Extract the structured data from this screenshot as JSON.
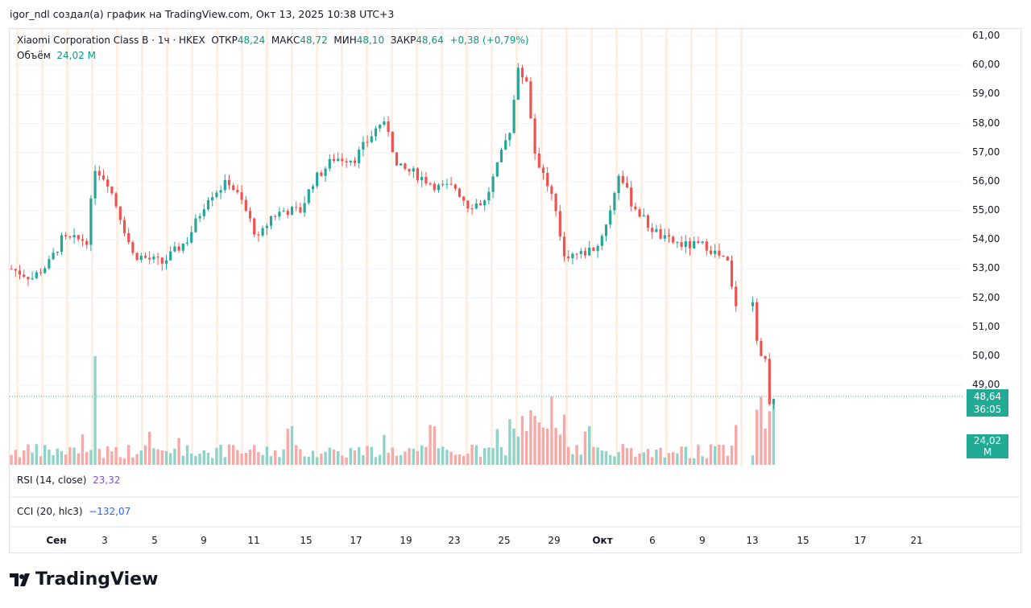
{
  "caption": "igor_ndl создал(а) график на TradingView.com, Окт 13, 2025 10:38 UTC+3",
  "legend": {
    "symbol": "Xiaomi Corporation Class B · 1ч · HKEX",
    "open_label": "ОТКР",
    "open": "48,24",
    "high_label": "МАКС",
    "high": "48,72",
    "low_label": "МИН",
    "low": "48,10",
    "close_label": "ЗАКР",
    "close": "48,64",
    "change": "+0,38 (+0,79%)",
    "volume_label": "Объём",
    "volume": "24,02 M"
  },
  "price_tag": {
    "price": "48,64",
    "countdown": "36:05",
    "volume": "24,02 M"
  },
  "indicators": {
    "rsi_label": "RSI (14, close)",
    "rsi_value": "23,32",
    "cci_label": "CCI (20, hlc3)",
    "cci_value": "−132,07"
  },
  "logo_text": "TradingView",
  "colors": {
    "up": "#26a69a",
    "down": "#ef5350",
    "vol_up": "#8fd3c9",
    "vol_down": "#f7a9a7",
    "tag": "#22ab94",
    "rsi": "#7e57c2",
    "cci": "#2962ff"
  },
  "chart_data": {
    "type": "candlestick",
    "title": "Xiaomi Corporation Class B · 1ч · HKEX",
    "y_ticks": [
      "61,00",
      "60,00",
      "59,00",
      "58,00",
      "57,00",
      "56,00",
      "55,00",
      "54,00",
      "53,00",
      "52,00",
      "51,00",
      "50,00",
      "49,00"
    ],
    "ylim": [
      48,
      61
    ],
    "x_ticks": [
      "Сен",
      "3",
      "5",
      "9",
      "11",
      "15",
      "17",
      "19",
      "23",
      "25",
      "29",
      "Окт",
      "6",
      "9",
      "13",
      "15",
      "17",
      "21"
    ],
    "price_path": [
      [
        0,
        53.0
      ],
      [
        5,
        52.7
      ],
      [
        9,
        53.2
      ],
      [
        12,
        54.0
      ],
      [
        18,
        54.0
      ],
      [
        20,
        56.5
      ],
      [
        23,
        56.0
      ],
      [
        26,
        54.8
      ],
      [
        29,
        53.5
      ],
      [
        36,
        53.2
      ],
      [
        42,
        54.0
      ],
      [
        47,
        55.5
      ],
      [
        52,
        56.0
      ],
      [
        55,
        55.3
      ],
      [
        59,
        54.0
      ],
      [
        62,
        54.8
      ],
      [
        65,
        55.0
      ],
      [
        69,
        55.0
      ],
      [
        72,
        56.0
      ],
      [
        77,
        56.8
      ],
      [
        82,
        56.8
      ],
      [
        88,
        58.0
      ],
      [
        90,
        57.8
      ],
      [
        92,
        56.5
      ],
      [
        96,
        56.3
      ],
      [
        102,
        55.8
      ],
      [
        106,
        55.8
      ],
      [
        109,
        55.2
      ],
      [
        113,
        55.3
      ],
      [
        116,
        56.5
      ],
      [
        119,
        57.8
      ],
      [
        121,
        59.8
      ],
      [
        123,
        59.5
      ],
      [
        125,
        57.0
      ],
      [
        129,
        55.5
      ],
      [
        132,
        53.5
      ],
      [
        136,
        53.5
      ],
      [
        140,
        53.8
      ],
      [
        143,
        55.0
      ],
      [
        145,
        56.3
      ],
      [
        148,
        55.3
      ],
      [
        152,
        54.5
      ],
      [
        156,
        54.0
      ],
      [
        161,
        53.8
      ],
      [
        166,
        53.8
      ],
      [
        170,
        53.3
      ],
      [
        171,
        53.2
      ],
      [
        172,
        52.3
      ],
      [
        173,
        51.8
      ],
      [
        177,
        52.0
      ],
      [
        178,
        50.5
      ],
      [
        180,
        49.8
      ],
      [
        181,
        48.5
      ],
      [
        182,
        48.64
      ]
    ]
  }
}
